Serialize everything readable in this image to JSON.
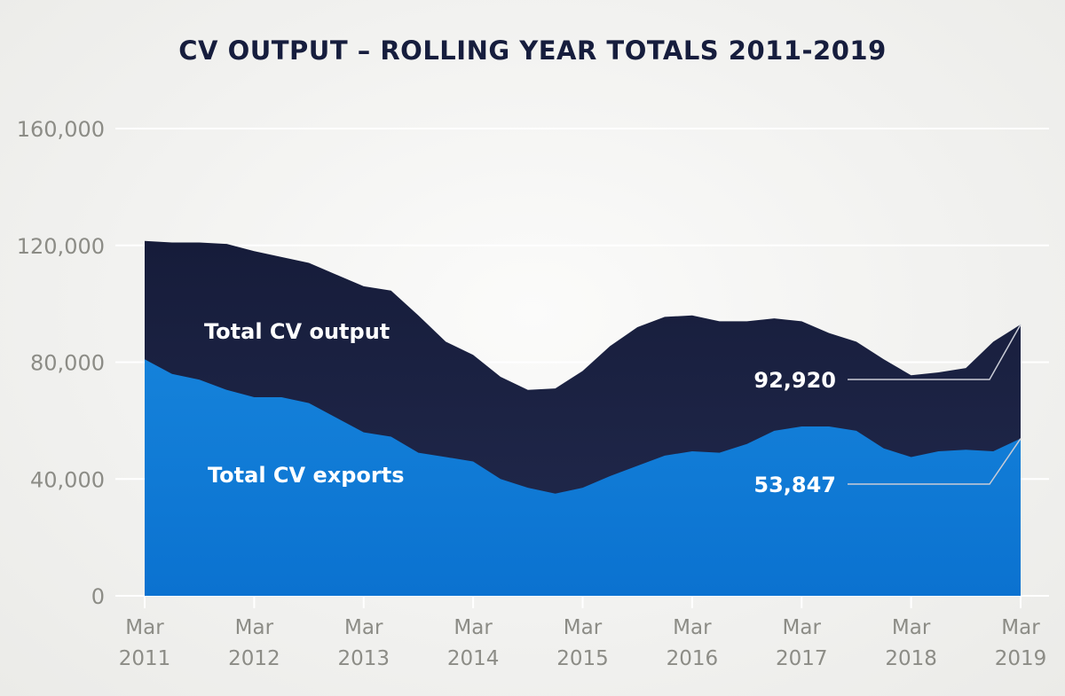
{
  "chart_data": {
    "type": "area",
    "title": "CV OUTPUT – ROLLING YEAR TOTALS 2011-2019",
    "xlabel": "",
    "ylabel": "",
    "ylim": [
      0,
      160000
    ],
    "yticks": [
      "0",
      "40,000",
      "80,000",
      "120,000",
      "160,000"
    ],
    "ytick_values": [
      0,
      40000,
      80000,
      120000,
      160000
    ],
    "xticks": [
      [
        "Mar",
        "2011"
      ],
      [
        "Mar",
        "2012"
      ],
      [
        "Mar",
        "2013"
      ],
      [
        "Mar",
        "2014"
      ],
      [
        "Mar",
        "2015"
      ],
      [
        "Mar",
        "2016"
      ],
      [
        "Mar",
        "2017"
      ],
      [
        "Mar",
        "2018"
      ],
      [
        "Mar",
        "2019"
      ]
    ],
    "x_months_from_mar_2011": [
      0,
      3,
      6,
      9,
      12,
      15,
      18,
      21,
      24,
      27,
      30,
      33,
      36,
      39,
      42,
      45,
      48,
      51,
      54,
      57,
      60,
      63,
      66,
      69,
      72,
      75,
      78,
      81,
      84,
      87,
      90,
      93,
      96
    ],
    "series": [
      {
        "name": "Total CV output",
        "color": "#1b2244",
        "values": [
          121500,
          121000,
          121000,
          120500,
          118000,
          116000,
          114000,
          110000,
          106000,
          104500,
          96000,
          87000,
          82500,
          75000,
          70500,
          71000,
          77000,
          85500,
          92000,
          95500,
          96000,
          94000,
          94000,
          95000,
          94000,
          90000,
          87000,
          81000,
          75500,
          76500,
          78000,
          87000,
          92920
        ]
      },
      {
        "name": "Total CV exports",
        "color": "#137fd8",
        "values": [
          81000,
          76000,
          74000,
          70500,
          68000,
          68000,
          66000,
          61000,
          56000,
          54500,
          49000,
          47500,
          46000,
          40000,
          37000,
          35000,
          37000,
          41000,
          44500,
          48000,
          49500,
          49000,
          52000,
          56500,
          58000,
          58000,
          56500,
          50500,
          47500,
          49500,
          50000,
          49500,
          53847
        ]
      }
    ],
    "annotations": [
      {
        "series": "Total CV output",
        "label": "92,920"
      },
      {
        "series": "Total CV exports",
        "label": "53,847"
      }
    ],
    "grid": true
  }
}
